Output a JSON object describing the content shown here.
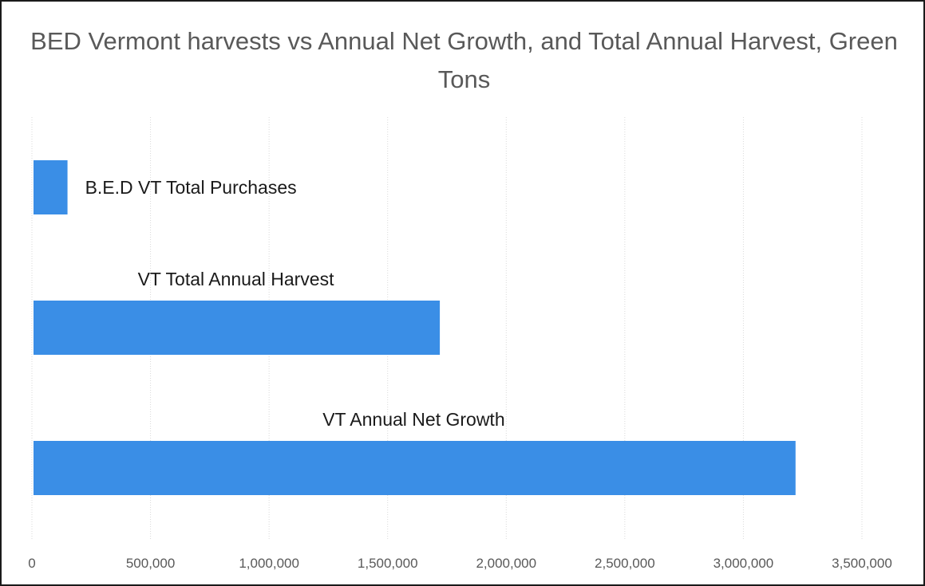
{
  "chart_data": {
    "type": "bar",
    "orientation": "horizontal",
    "title": "BED Vermont harvests vs Annual Net Growth, and Total Annual Harvest, Green Tons",
    "categories": [
      "B.E.D VT Total Purchases",
      "VT Total Annual Harvest",
      "VT Annual Net Growth"
    ],
    "values": [
      150000,
      1720000,
      3220000
    ],
    "xlim": [
      0,
      3500000
    ],
    "xticks": [
      "0",
      "500,000",
      "1,000,000",
      "1,500,000",
      "2,000,000",
      "2,500,000",
      "3,000,000",
      "3,500,000"
    ],
    "xtick_values": [
      0,
      500000,
      1000000,
      1500000,
      2000000,
      2500000,
      3000000,
      3500000
    ],
    "xlabel": "",
    "ylabel": "",
    "grid": true,
    "legend": "none",
    "bar_color": "#3a8ee6"
  }
}
